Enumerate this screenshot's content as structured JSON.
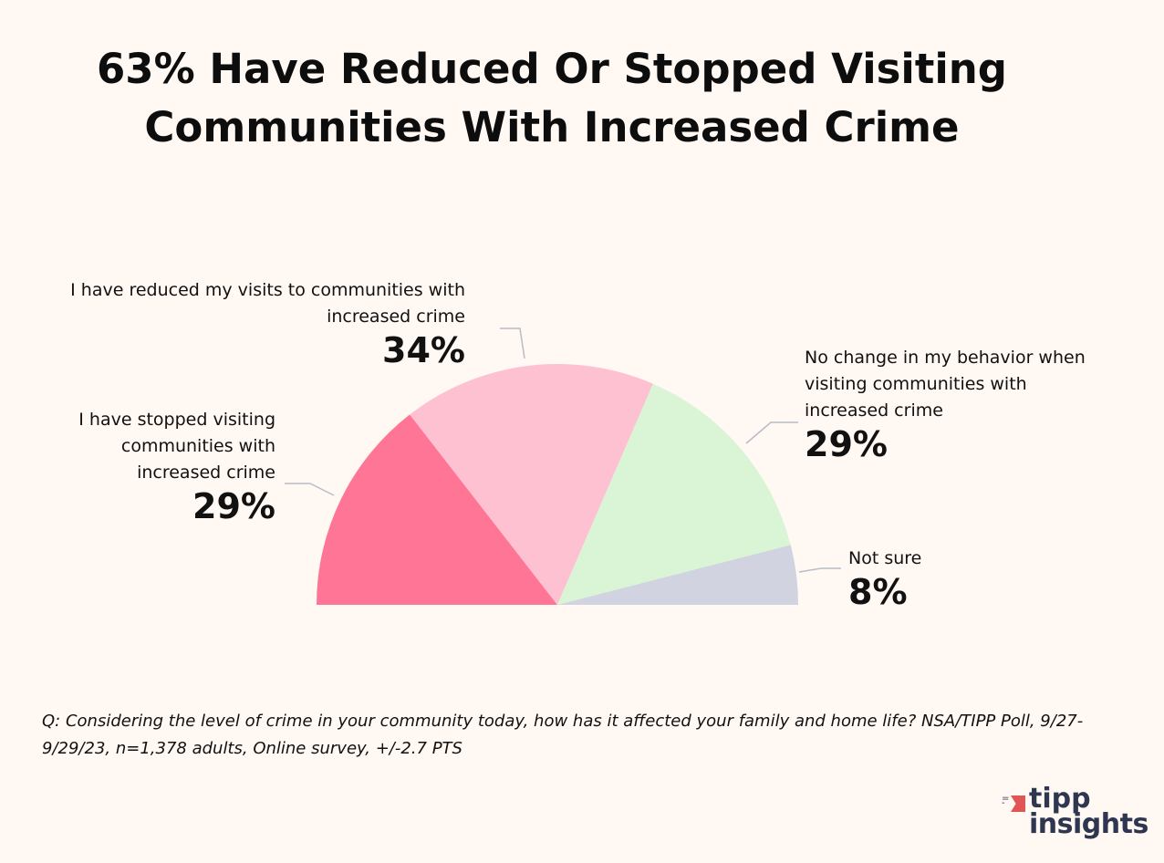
{
  "title": "63% Have Reduced Or Stopped Visiting Communities With Increased Crime",
  "chart_data": {
    "type": "pie",
    "variant": "semicircle",
    "categories": [
      "I have stopped visiting communities with increased crime",
      "I have reduced my visits to communities with increased crime",
      "No change in my behavior when visiting communities with increased crime",
      "Not sure"
    ],
    "values": [
      29,
      34,
      29,
      8
    ],
    "value_labels": [
      "29%",
      "34%",
      "29%",
      "8%"
    ],
    "colors": [
      "#FF7596",
      "#FDC1D2",
      "#D9F5D5",
      "#D1D3E0"
    ],
    "legend": "none"
  },
  "note": "Q:  Considering the level of crime in your community today, how has it affected your family and home life? NSA/TIPP Poll, 9/27-9/29/23, n=1,378 adults, Online survey, +/-2.7 PTS",
  "logo": {
    "line1": "tipp",
    "line2": "insights",
    "color": "#2F3650",
    "accent": "#E05555"
  }
}
